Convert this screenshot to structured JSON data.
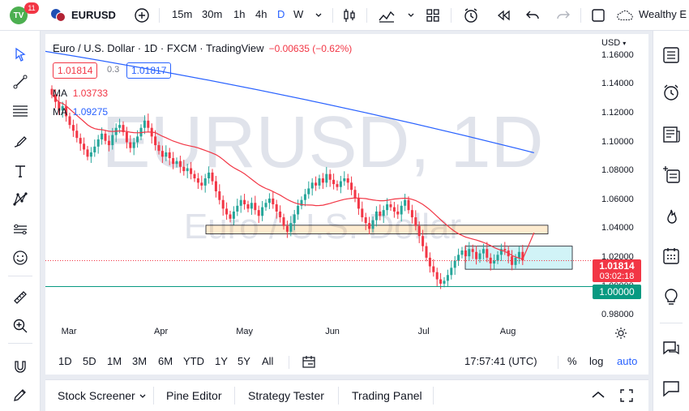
{
  "header": {
    "logo_text": "TV",
    "notifications": "11",
    "symbol": "EURUSD",
    "intervals": [
      "15m",
      "30m",
      "1h",
      "4h",
      "D",
      "W"
    ],
    "active_interval": "D",
    "right_label": "Wealthy E"
  },
  "legend": {
    "title": "Euro / U.S. Dollar · 1D · FXCM · TradingView",
    "change": "−0.00635 (−0.62%)",
    "bid": "1.01814",
    "spread": "0.3",
    "ask": "1.01817",
    "ma1_label": "MA",
    "ma1_value": "1.03733",
    "ma2_label": "MA",
    "ma2_value": "1.09275"
  },
  "watermark": {
    "line1": "EURUSD, 1D",
    "line2": "Euro / U.S. Dollar"
  },
  "axis": {
    "currency": "USD",
    "y_ticks": [
      "1.16000",
      "1.14000",
      "1.12000",
      "1.10000",
      "1.08000",
      "1.06000",
      "1.04000",
      "1.02000",
      "1.00000",
      "0.98000"
    ],
    "x_ticks": [
      "Mar",
      "Apr",
      "May",
      "Jun",
      "Jul",
      "Aug"
    ],
    "last_price": "1.01814",
    "countdown": "03:02:18",
    "level_label": "1.00000"
  },
  "timeframes": [
    "1D",
    "5D",
    "1M",
    "3M",
    "6M",
    "YTD",
    "1Y",
    "5Y",
    "All"
  ],
  "clock": "17:57:41 (UTC)",
  "scale_options": [
    "%",
    "log",
    "auto"
  ],
  "bottom_tabs": [
    "Stock Screener",
    "Pine Editor",
    "Strategy Tester",
    "Trading Panel"
  ],
  "colors": {
    "up": "#26a69a",
    "down": "#f23645",
    "ma_fast": "#f23645",
    "ma_slow": "#2962ff",
    "level_line": "#089981",
    "accent": "#2962ff"
  },
  "chart_data": {
    "type": "candlestick",
    "y_range": [
      0.975,
      1.175
    ],
    "level_1_00000": 1.0,
    "resistance_zone": [
      1.0365,
      1.0425
    ],
    "range_zone": [
      1.012,
      1.028
    ],
    "ma_fast_last": 1.03733,
    "ma_slow_last": 1.09275,
    "closes": [
      1.133,
      1.128,
      1.122,
      1.125,
      1.118,
      1.112,
      1.108,
      1.103,
      1.099,
      1.095,
      1.09,
      1.093,
      1.097,
      1.102,
      1.106,
      1.101,
      1.098,
      1.105,
      1.11,
      1.112,
      1.107,
      1.1,
      1.096,
      1.1,
      1.104,
      1.11,
      1.115,
      1.11,
      1.104,
      1.098,
      1.094,
      1.09,
      1.093,
      1.089,
      1.085,
      1.087,
      1.083,
      1.08,
      1.082,
      1.078,
      1.075,
      1.072,
      1.07,
      1.075,
      1.079,
      1.073,
      1.066,
      1.06,
      1.054,
      1.05,
      1.047,
      1.052,
      1.056,
      1.06,
      1.057,
      1.054,
      1.058,
      1.053,
      1.049,
      1.055,
      1.058,
      1.061,
      1.057,
      1.052,
      1.048,
      1.042,
      1.038,
      1.044,
      1.05,
      1.056,
      1.06,
      1.064,
      1.068,
      1.072,
      1.07,
      1.075,
      1.072,
      1.078,
      1.074,
      1.071,
      1.069,
      1.073,
      1.075,
      1.072,
      1.067,
      1.061,
      1.054,
      1.048,
      1.044,
      1.04,
      1.046,
      1.052,
      1.049,
      1.053,
      1.057,
      1.055,
      1.052,
      1.05,
      1.056,
      1.06,
      1.053,
      1.048,
      1.042,
      1.035,
      1.028,
      1.02,
      1.014,
      1.01,
      1.005,
      1.002,
      1.004,
      1.008,
      1.013,
      1.018,
      1.022,
      1.025,
      1.021,
      1.026,
      1.024,
      1.019,
      1.023,
      1.026,
      1.02,
      1.016,
      1.018,
      1.022,
      1.026,
      1.025,
      1.021,
      1.015,
      1.02,
      1.024,
      1.018
    ]
  }
}
